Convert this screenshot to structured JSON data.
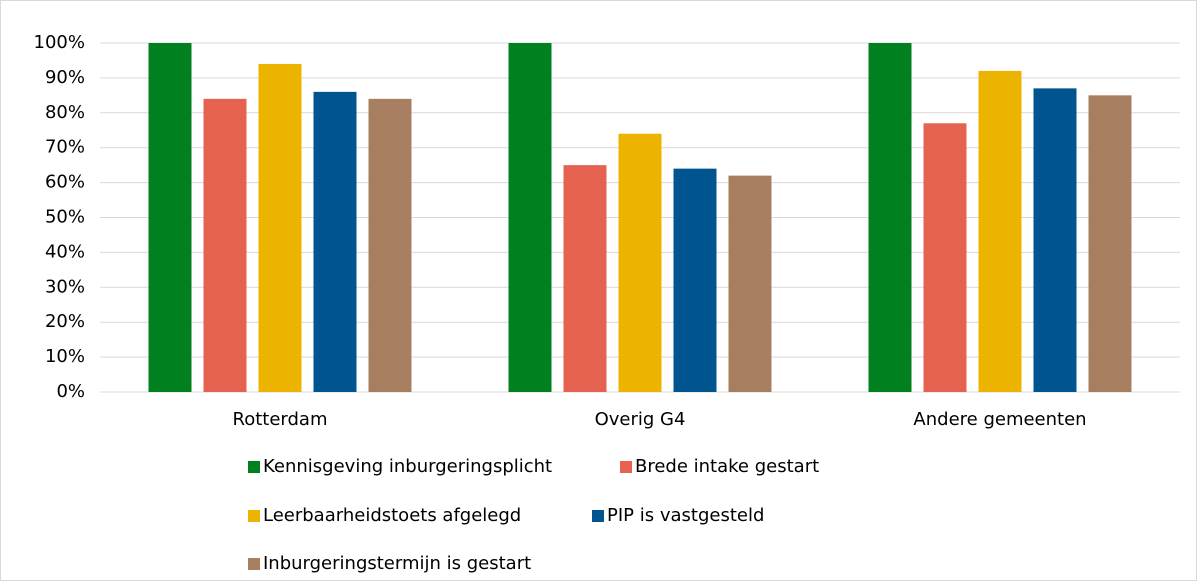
{
  "chart_data": {
    "type": "bar",
    "categories": [
      "Rotterdam",
      "Overig G4",
      "Andere gemeenten"
    ],
    "series": [
      {
        "name": "Kennisgeving inburgeringsplicht",
        "color": "#00801f",
        "values": [
          100,
          100,
          100
        ]
      },
      {
        "name": "Brede intake gestart",
        "color": "#e4624f",
        "values": [
          84,
          65,
          77
        ]
      },
      {
        "name": "Leerbaarheidstoets afgelegd",
        "color": "#ecb400",
        "values": [
          94,
          74,
          92
        ]
      },
      {
        "name": "PIP is vastgesteld",
        "color": "#00548f",
        "values": [
          86,
          64,
          87
        ]
      },
      {
        "name": "Inburgeringstermijn is gestart",
        "color": "#a87e60",
        "values": [
          84,
          62,
          85
        ]
      }
    ],
    "ylim": [
      0,
      100
    ],
    "yticks": [
      {
        "value": 0,
        "label": "0%"
      },
      {
        "value": 10,
        "label": "10%"
      },
      {
        "value": 20,
        "label": "20%"
      },
      {
        "value": 30,
        "label": "30%"
      },
      {
        "value": 40,
        "label": "40%"
      },
      {
        "value": 50,
        "label": "50%"
      },
      {
        "value": 60,
        "label": "60%"
      },
      {
        "value": 70,
        "label": "70%"
      },
      {
        "value": 80,
        "label": "80%"
      },
      {
        "value": 90,
        "label": "90%"
      },
      {
        "value": 100,
        "label": "100%"
      }
    ],
    "grid": true,
    "legend": "bottom"
  }
}
